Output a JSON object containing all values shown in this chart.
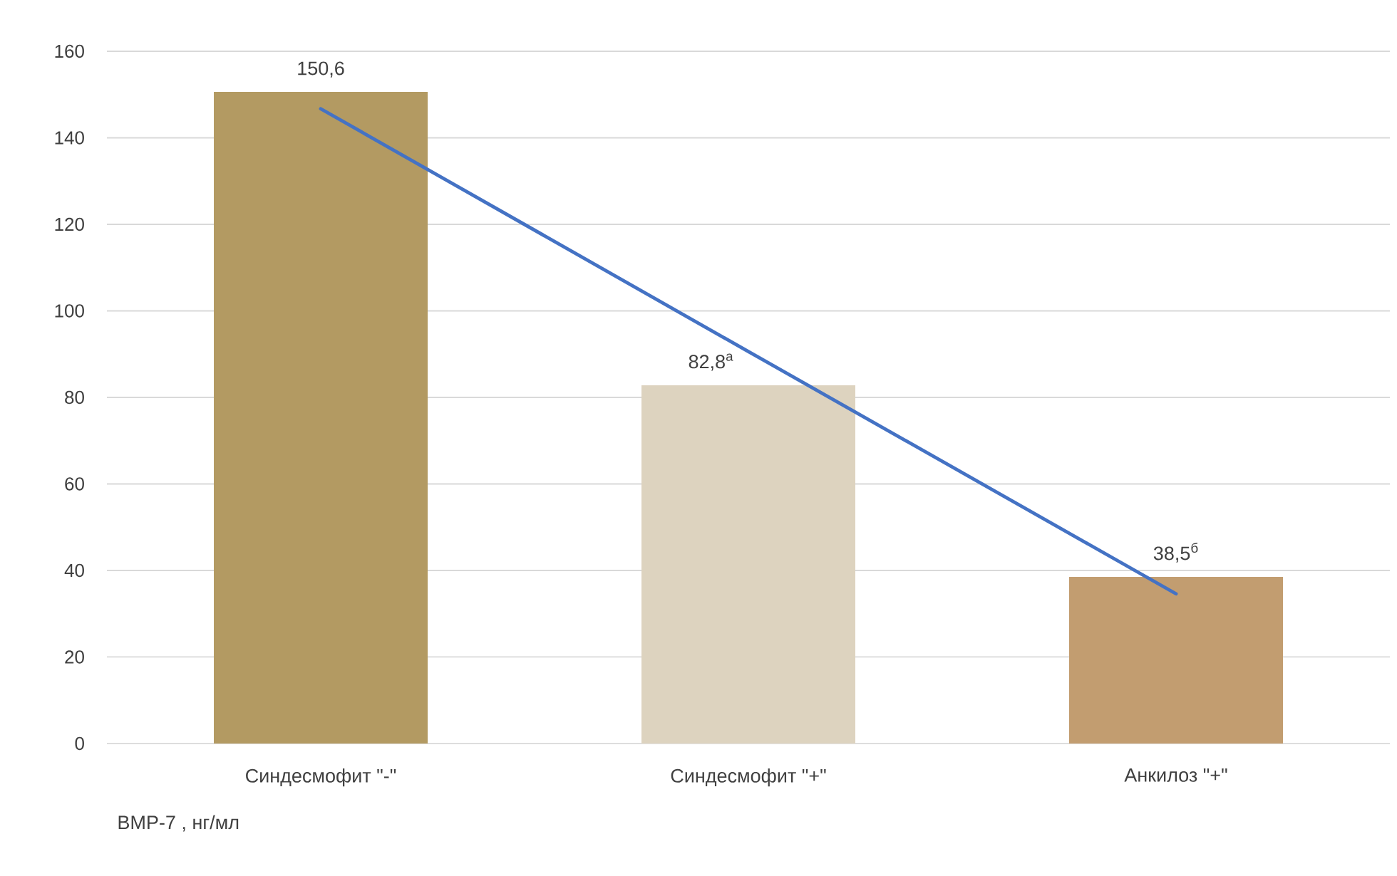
{
  "chart_data": {
    "type": "bar",
    "categories": [
      "Синдесмофит \"-\"",
      "Синдесмофит \"+\"",
      "Анкилоз \"+\""
    ],
    "series": [
      {
        "type": "bar",
        "colors": [
          "#b39a62",
          "#ddd3bf",
          "#c29d70"
        ],
        "values": [
          150.6,
          82.8,
          38.5
        ],
        "value_labels": [
          "150,6",
          "82,8$^{а}$",
          "38,5$^{б}$"
        ]
      },
      {
        "type": "line",
        "color": "#4472c4",
        "marker": "none",
        "values": [
          146.7,
          90.6,
          34.6
        ]
      }
    ],
    "ylim": [
      0,
      160
    ],
    "yticks": [
      0,
      20,
      40,
      60,
      80,
      100,
      120,
      140,
      160
    ],
    "grid": "y",
    "annotations": [
      "BMP-7 , нг/мл"
    ]
  }
}
